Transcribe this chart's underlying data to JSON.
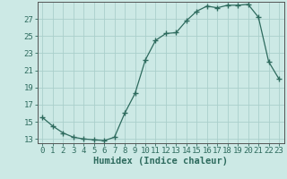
{
  "x": [
    0,
    1,
    2,
    3,
    4,
    5,
    6,
    7,
    8,
    9,
    10,
    11,
    12,
    13,
    14,
    15,
    16,
    17,
    18,
    19,
    20,
    21,
    22,
    23
  ],
  "y": [
    15.5,
    14.5,
    13.7,
    13.2,
    13.0,
    12.9,
    12.8,
    13.2,
    16.0,
    18.3,
    22.2,
    24.5,
    25.3,
    25.4,
    26.8,
    27.9,
    28.5,
    28.3,
    28.6,
    28.6,
    28.7,
    27.2,
    22.0,
    20.0
  ],
  "line_color": "#2e6b5e",
  "marker": "+",
  "marker_size": 4,
  "bg_color": "#cce9e5",
  "grid_color": "#aacfcb",
  "xlabel": "Humidex (Indice chaleur)",
  "ylabel": "",
  "xlim": [
    -0.5,
    23.5
  ],
  "ylim": [
    12.5,
    29.0
  ],
  "yticks": [
    13,
    15,
    17,
    19,
    21,
    23,
    25,
    27
  ],
  "xticks": [
    0,
    1,
    2,
    3,
    4,
    5,
    6,
    7,
    8,
    9,
    10,
    11,
    12,
    13,
    14,
    15,
    16,
    17,
    18,
    19,
    20,
    21,
    22,
    23
  ],
  "xlabel_fontsize": 7.5,
  "tick_fontsize": 6.5,
  "axis_color": "#2e6b5e",
  "spine_color": "#555555"
}
